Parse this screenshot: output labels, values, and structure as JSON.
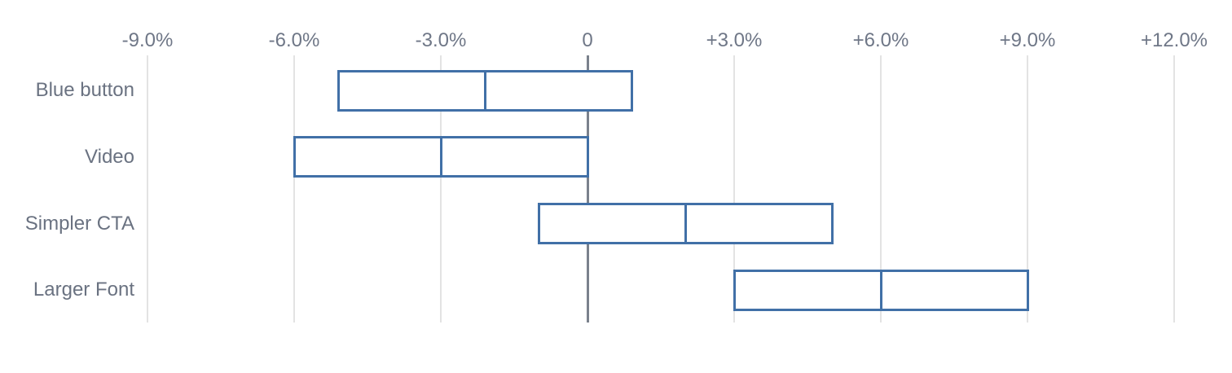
{
  "chart_data": {
    "type": "bar",
    "subtype": "horizontal-range-bars-with-mean-divider",
    "title": "",
    "xlabel": "",
    "ylabel": "",
    "unit": "%",
    "grid": true,
    "legend": false,
    "xlim": [
      -10.5,
      13.2
    ],
    "categories": [
      "Blue button",
      "Video",
      "Simpler CTA",
      "Larger Font"
    ],
    "series": [
      {
        "name": "Blue button",
        "low": -5.1,
        "mid": -2.1,
        "high": 0.9
      },
      {
        "name": "Video",
        "low": -6.0,
        "mid": -3.0,
        "high": 0.0
      },
      {
        "name": "Simpler CTA",
        "low": -1.0,
        "mid": 2.0,
        "high": 5.0
      },
      {
        "name": "Larger Font",
        "low": 3.0,
        "mid": 6.0,
        "high": 9.0
      }
    ],
    "x_ticks": [
      {
        "value": -9,
        "label": "-9.0%"
      },
      {
        "value": -6,
        "label": "-6.0%"
      },
      {
        "value": -3,
        "label": "-3.0%"
      },
      {
        "value": 0,
        "label": "0"
      },
      {
        "value": 3,
        "label": "+3.0%"
      },
      {
        "value": 6,
        "label": "+6.0%"
      },
      {
        "value": 9,
        "label": "+9.0%"
      },
      {
        "value": 12,
        "label": "+12.0%"
      }
    ]
  },
  "colors": {
    "background": "#ffffff",
    "bar_border": "#4170a7",
    "bar_fill": "#ffffff",
    "gridline": "#e3e3e3",
    "zero_line": "#7a818c",
    "tick_text": "#6f7787",
    "category_text": "#6a7281"
  }
}
